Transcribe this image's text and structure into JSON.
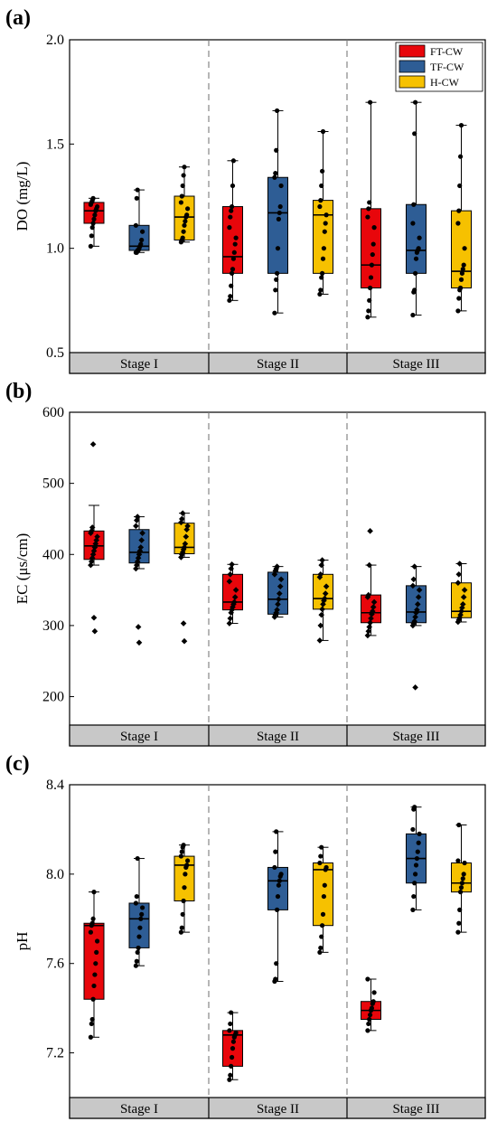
{
  "chart_data": [
    {
      "panel": "(a)",
      "type": "box",
      "ylabel": "DO (mg/L)",
      "ylim": [
        0.5,
        2.0
      ],
      "yticks": [
        "0.5",
        "1.0",
        "1.5",
        "2.0"
      ],
      "groups": [
        "Stage I",
        "Stage II",
        "Stage III"
      ],
      "series_names": [
        "FT-CW",
        "TF-CW",
        "H-CW"
      ],
      "colors": [
        "#e8060b",
        "#2e5d95",
        "#f6c100"
      ],
      "legend": "top-right",
      "boxes": [
        [
          {
            "min": 1.01,
            "q1": 1.12,
            "median": 1.18,
            "q3": 1.22,
            "max": 1.24,
            "points": [
              1.01,
              1.06,
              1.1,
              1.12,
              1.14,
              1.16,
              1.18,
              1.19,
              1.2,
              1.21,
              1.22,
              1.23,
              1.24
            ]
          },
          {
            "min": 0.98,
            "q1": 0.99,
            "median": 1.01,
            "q3": 1.11,
            "max": 1.28,
            "points": [
              0.98,
              0.98,
              0.99,
              0.99,
              1.0,
              1.01,
              1.02,
              1.04,
              1.08,
              1.11,
              1.24,
              1.28
            ]
          },
          {
            "min": 1.03,
            "q1": 1.04,
            "median": 1.15,
            "q3": 1.25,
            "max": 1.39,
            "points": [
              1.03,
              1.04,
              1.05,
              1.08,
              1.11,
              1.13,
              1.15,
              1.16,
              1.19,
              1.22,
              1.25,
              1.3,
              1.35,
              1.39
            ]
          }
        ],
        [
          {
            "min": 0.75,
            "q1": 0.88,
            "median": 0.96,
            "q3": 1.2,
            "max": 1.42,
            "points": [
              0.75,
              0.77,
              0.82,
              0.88,
              0.9,
              0.95,
              0.98,
              1.02,
              1.05,
              1.1,
              1.15,
              1.18,
              1.2,
              1.3,
              1.42
            ]
          },
          {
            "min": 0.69,
            "q1": 0.88,
            "median": 1.17,
            "q3": 1.34,
            "max": 1.66,
            "points": [
              0.69,
              0.8,
              0.85,
              0.88,
              1.0,
              1.14,
              1.17,
              1.2,
              1.3,
              1.34,
              1.36,
              1.47,
              1.66
            ]
          },
          {
            "min": 0.78,
            "q1": 0.88,
            "median": 1.16,
            "q3": 1.23,
            "max": 1.56,
            "points": [
              0.78,
              0.8,
              0.86,
              0.88,
              0.95,
              1.0,
              1.08,
              1.12,
              1.16,
              1.2,
              1.23,
              1.3,
              1.37,
              1.56
            ]
          }
        ],
        [
          {
            "min": 0.67,
            "q1": 0.81,
            "median": 0.92,
            "q3": 1.19,
            "max": 1.7,
            "points": [
              0.67,
              0.7,
              0.75,
              0.81,
              0.86,
              0.92,
              0.97,
              1.02,
              1.1,
              1.15,
              1.19,
              1.22,
              1.7
            ]
          },
          {
            "min": 0.68,
            "q1": 0.88,
            "median": 0.99,
            "q3": 1.21,
            "max": 1.7,
            "points": [
              0.68,
              0.79,
              0.8,
              0.88,
              0.95,
              0.98,
              0.99,
              1.0,
              1.05,
              1.12,
              1.21,
              1.55,
              1.7
            ]
          },
          {
            "min": 0.7,
            "q1": 0.81,
            "median": 0.89,
            "q3": 1.18,
            "max": 1.59,
            "points": [
              0.7,
              0.76,
              0.8,
              0.81,
              0.85,
              0.88,
              0.9,
              0.92,
              1.0,
              1.12,
              1.18,
              1.3,
              1.44,
              1.59
            ]
          }
        ]
      ]
    },
    {
      "panel": "(b)",
      "type": "box",
      "ylabel": "EC (μs/cm)",
      "ylim": [
        160,
        600
      ],
      "yticks": [
        "200",
        "300",
        "400",
        "500",
        "600"
      ],
      "groups": [
        "Stage I",
        "Stage II",
        "Stage III"
      ],
      "series_names": [
        "FT-CW",
        "TF-CW",
        "H-CW"
      ],
      "colors": [
        "#e8060b",
        "#2e5d95",
        "#f6c100"
      ],
      "boxes": [
        [
          {
            "min": 385,
            "q1": 393,
            "median": 412,
            "q3": 433,
            "max": 469,
            "points": [
              385,
              390,
              395,
              400,
              405,
              410,
              415,
              420,
              425,
              430,
              433,
              438
            ],
            "outliers": [
              555,
              311,
              292
            ]
          },
          {
            "min": 380,
            "q1": 388,
            "median": 403,
            "q3": 435,
            "max": 453,
            "points": [
              380,
              385,
              390,
              395,
              400,
              405,
              410,
              420,
              430,
              440,
              448,
              453
            ],
            "outliers": [
              298,
              276
            ]
          },
          {
            "min": 396,
            "q1": 401,
            "median": 410,
            "q3": 444,
            "max": 458,
            "points": [
              396,
              400,
              403,
              407,
              410,
              415,
              425,
              435,
              440,
              445,
              450,
              458
            ],
            "outliers": [
              303,
              278
            ]
          }
        ],
        [
          {
            "min": 303,
            "q1": 322,
            "median": 333,
            "q3": 372,
            "max": 386,
            "points": [
              303,
              310,
              318,
              322,
              326,
              330,
              333,
              340,
              350,
              362,
              372,
              380,
              386
            ]
          },
          {
            "min": 312,
            "q1": 316,
            "median": 337,
            "q3": 375,
            "max": 383,
            "points": [
              312,
              315,
              318,
              322,
              330,
              337,
              345,
              355,
              365,
              372,
              377,
              380,
              383
            ]
          },
          {
            "min": 279,
            "q1": 323,
            "median": 338,
            "q3": 372,
            "max": 392,
            "points": [
              279,
              300,
              315,
              323,
              330,
              335,
              338,
              345,
              355,
              368,
              372,
              385,
              392
            ]
          }
        ],
        [
          {
            "min": 286,
            "q1": 304,
            "median": 318,
            "q3": 343,
            "max": 385,
            "points": [
              286,
              292,
              298,
              304,
              310,
              316,
              320,
              326,
              333,
              340,
              343,
              385
            ],
            "outliers": [
              433
            ]
          },
          {
            "min": 300,
            "q1": 304,
            "median": 319,
            "q3": 356,
            "max": 383,
            "points": [
              300,
              303,
              306,
              312,
              318,
              322,
              330,
              340,
              350,
              356,
              365,
              383
            ],
            "outliers": [
              213
            ]
          },
          {
            "min": 305,
            "q1": 311,
            "median": 320,
            "q3": 360,
            "max": 387,
            "points": [
              305,
              308,
              311,
              315,
              320,
              325,
              330,
              340,
              350,
              360,
              372,
              387
            ]
          }
        ]
      ]
    },
    {
      "panel": "(c)",
      "type": "box",
      "ylabel": "pH",
      "ylim": [
        7.0,
        8.4
      ],
      "yticks": [
        "7.2",
        "7.6",
        "8.0",
        "8.4"
      ],
      "groups": [
        "Stage I",
        "Stage II",
        "Stage III"
      ],
      "series_names": [
        "FT-CW",
        "TF-CW",
        "H-CW"
      ],
      "colors": [
        "#e8060b",
        "#2e5d95",
        "#f6c100"
      ],
      "boxes": [
        [
          {
            "min": 7.27,
            "q1": 7.44,
            "median": 7.77,
            "q3": 7.78,
            "max": 7.92,
            "points": [
              7.27,
              7.33,
              7.35,
              7.44,
              7.5,
              7.55,
              7.6,
              7.65,
              7.7,
              7.74,
              7.77,
              7.78,
              7.8,
              7.92
            ]
          },
          {
            "min": 7.59,
            "q1": 7.67,
            "median": 7.8,
            "q3": 7.87,
            "max": 8.07,
            "points": [
              7.59,
              7.61,
              7.65,
              7.67,
              7.72,
              7.76,
              7.8,
              7.82,
              7.85,
              7.87,
              7.9,
              8.07
            ]
          },
          {
            "min": 7.74,
            "q1": 7.88,
            "median": 8.04,
            "q3": 8.08,
            "max": 8.13,
            "points": [
              7.74,
              7.76,
              7.82,
              7.88,
              7.94,
              8.0,
              8.03,
              8.04,
              8.06,
              8.08,
              8.1,
              8.12,
              8.13
            ]
          }
        ],
        [
          {
            "min": 7.08,
            "q1": 7.14,
            "median": 7.28,
            "q3": 7.3,
            "max": 7.38,
            "points": [
              7.08,
              7.1,
              7.14,
              7.18,
              7.22,
              7.25,
              7.27,
              7.28,
              7.29,
              7.3,
              7.33,
              7.38
            ]
          },
          {
            "min": 7.52,
            "q1": 7.84,
            "median": 7.97,
            "q3": 8.03,
            "max": 8.19,
            "points": [
              7.52,
              7.53,
              7.6,
              7.84,
              7.9,
              7.95,
              7.97,
              7.99,
              8.0,
              8.03,
              8.1,
              8.19
            ]
          },
          {
            "min": 7.65,
            "q1": 7.77,
            "median": 8.02,
            "q3": 8.05,
            "max": 8.12,
            "points": [
              7.65,
              7.67,
              7.72,
              7.77,
              7.82,
              7.9,
              7.95,
              8.02,
              8.03,
              8.05,
              8.08,
              8.12
            ]
          }
        ],
        [
          {
            "min": 7.3,
            "q1": 7.35,
            "median": 7.39,
            "q3": 7.43,
            "max": 7.53,
            "points": [
              7.3,
              7.33,
              7.35,
              7.37,
              7.39,
              7.4,
              7.42,
              7.43,
              7.47,
              7.53
            ]
          },
          {
            "min": 7.84,
            "q1": 7.96,
            "median": 8.07,
            "q3": 8.18,
            "max": 8.3,
            "points": [
              7.84,
              7.9,
              7.96,
              8.0,
              8.04,
              8.07,
              8.1,
              8.14,
              8.18,
              8.2,
              8.29,
              8.3
            ]
          },
          {
            "min": 7.74,
            "q1": 7.92,
            "median": 7.96,
            "q3": 8.05,
            "max": 8.22,
            "points": [
              7.74,
              7.78,
              7.84,
              7.92,
              7.94,
              7.96,
              7.98,
              8.0,
              8.05,
              8.06,
              8.22
            ]
          }
        ]
      ]
    }
  ]
}
